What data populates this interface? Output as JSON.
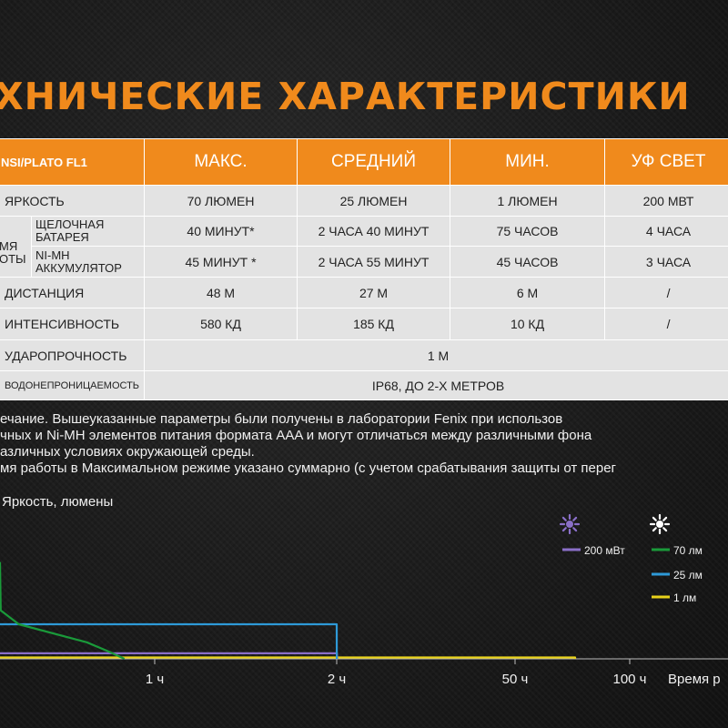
{
  "title": "ХНИЧЕСКИЕ ХАРАКТЕРИСТИКИ",
  "table": {
    "model": "NSI/PLATO FL1",
    "headers": [
      "МАКС.",
      "СРЕДНИЙ",
      "МИН.",
      "УФ СВЕТ"
    ],
    "brightness": {
      "label": "ЯРКОСТЬ",
      "values": [
        "70 ЛЮМЕН",
        "25 ЛЮМЕН",
        "1 ЛЮМЕН",
        "200 МВТ"
      ]
    },
    "runtime": {
      "group_label_line1": "МЯ",
      "group_label_line2": "ОТЫ",
      "alkaline": {
        "label_line1": "ЩЕЛОЧНАЯ",
        "label_line2": "БАТАРЕЯ",
        "values": [
          "40 МИНУТ*",
          "2 ЧАСА 40 МИНУТ",
          "75 ЧАСОВ",
          "4 ЧАСА"
        ]
      },
      "nimh": {
        "label_line1": "NI-MH",
        "label_line2": "АККУМУЛЯТОР",
        "values": [
          "45 МИНУТ *",
          "2 ЧАСА 55 МИНУТ",
          "45 ЧАСОВ",
          "3 ЧАСА"
        ]
      }
    },
    "distance": {
      "label": "ДИСТАНЦИЯ",
      "values": [
        "48 М",
        "27 М",
        "6 М",
        "/"
      ]
    },
    "intensity": {
      "label": "ИНТЕНСИВНОСТЬ",
      "values": [
        "580 КД",
        "185 КД",
        "10 КД",
        "/"
      ]
    },
    "impact": {
      "label": "УДАРОПРОЧНОСТЬ",
      "value": "1 М"
    },
    "waterproof": {
      "label": "ВОДОНЕПРОНИЦАЕМОСТЬ",
      "value": "IP68, ДО 2-Х МЕТРОВ"
    }
  },
  "notes": [
    "ечание. Вышеуказанные параметры были получены в лаборатории Fenix при использов",
    "чных и Ni-MH элементов питания формата AAA и могут отличаться между различными фона",
    "азличных условиях окружающей среды.",
    "мя работы в Максимальном режиме указано суммарно (с учетом срабатывания защиты от перег"
  ],
  "chart_data": {
    "type": "line",
    "ylabel": "Яркость, люмены",
    "xlabel": "Время р",
    "x_ticks": [
      "1 ч",
      "2 ч",
      "50 ч",
      "100 ч"
    ],
    "uv_icon": "uv-sun-icon",
    "white_icon": "white-sun-icon",
    "series": [
      {
        "name": "70 лм",
        "color": "#1a9a3a",
        "points": [
          [
            -0.05,
            70
          ],
          [
            -0.04,
            35
          ],
          [
            0.1,
            25
          ],
          [
            0.55,
            12
          ],
          [
            0.68,
            6
          ],
          [
            0.8,
            0
          ]
        ]
      },
      {
        "name": "25 лм",
        "color": "#2e9ad8",
        "points": [
          [
            -0.05,
            25
          ],
          [
            2.0,
            25
          ],
          [
            2.03,
            0
          ]
        ]
      },
      {
        "name": "200 мВт",
        "color": "#8a6fc8",
        "points": [
          [
            -0.05,
            4
          ],
          [
            2.05,
            4
          ],
          [
            2.1,
            0
          ]
        ]
      },
      {
        "name": "1 лм",
        "color": "#e8d21a",
        "points": [
          [
            -0.05,
            1
          ],
          [
            75,
            1
          ],
          [
            75,
            0
          ]
        ]
      }
    ]
  },
  "colors": {
    "accent": "#f08a1c",
    "table_cell": "#e3e3e3",
    "background": "#1e1e1e"
  }
}
